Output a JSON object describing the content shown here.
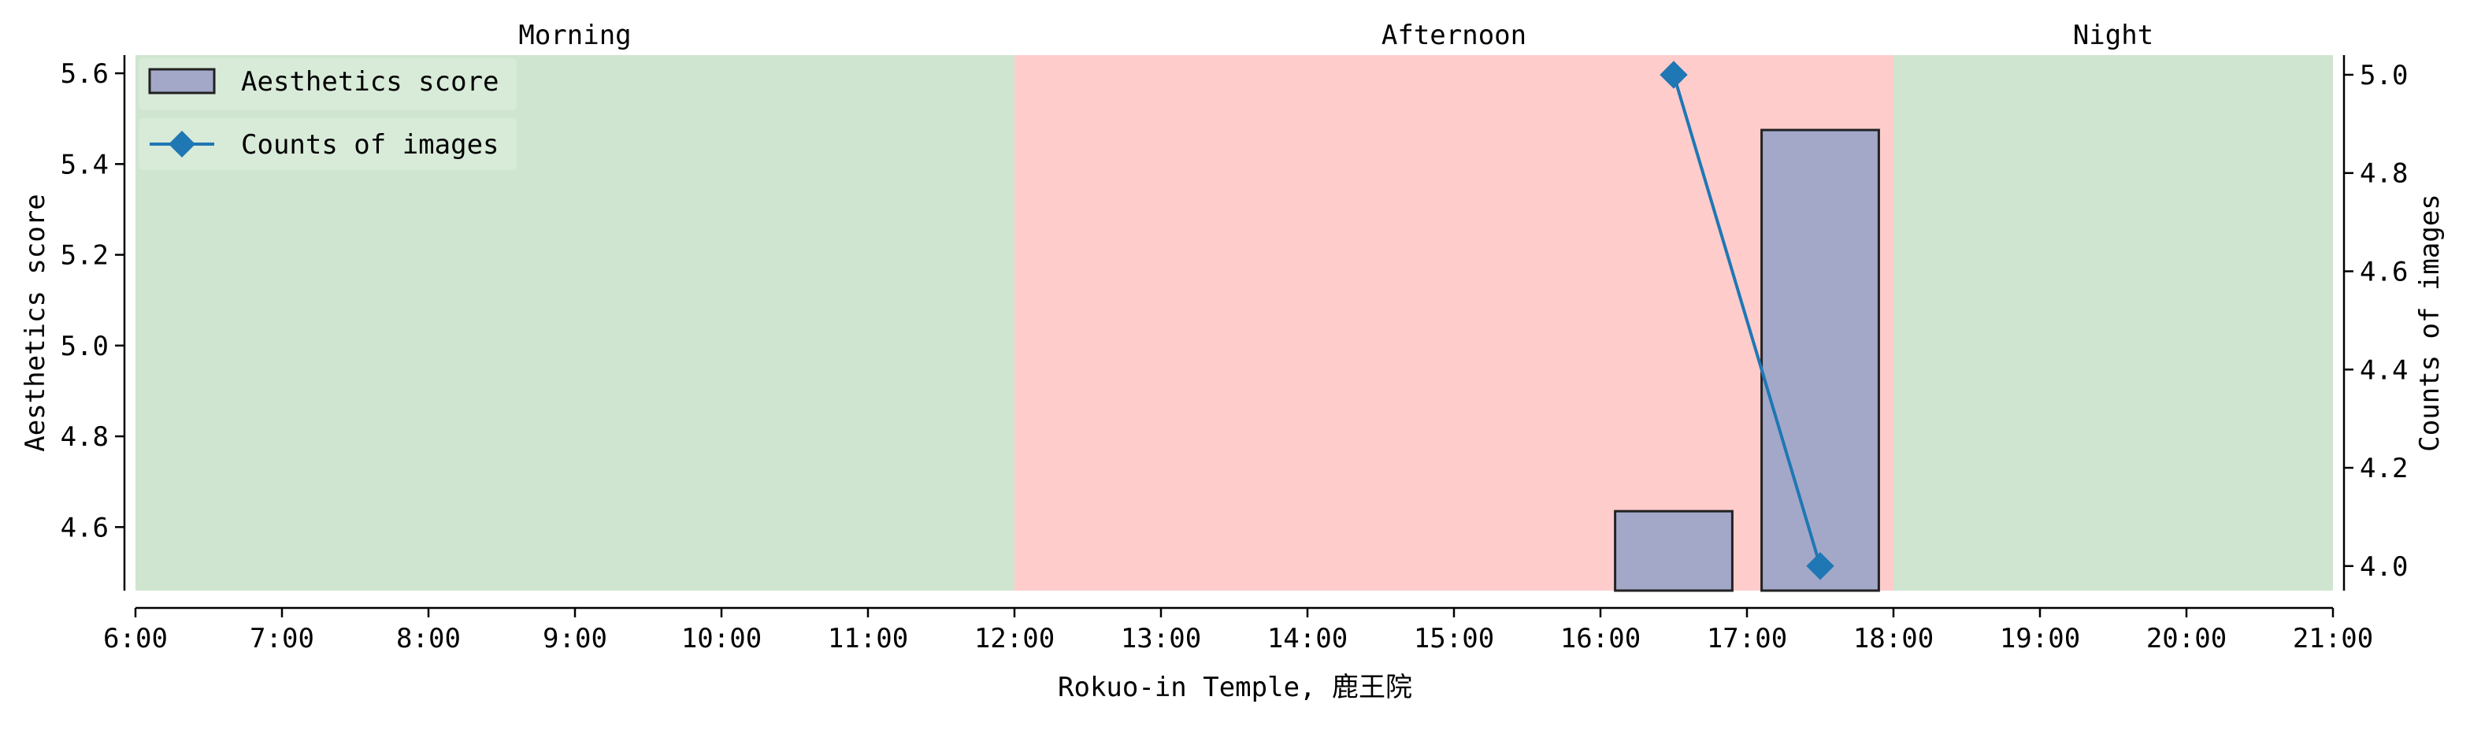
{
  "chart_data": {
    "type": "bar",
    "xlabel": "Rokuo-in Temple, 鹿王院",
    "ylabel_left": "Aesthetics score",
    "ylabel_right": "Counts of images",
    "x_ticks": [
      "6:00",
      "7:00",
      "8:00",
      "9:00",
      "10:00",
      "11:00",
      "12:00",
      "13:00",
      "14:00",
      "15:00",
      "16:00",
      "17:00",
      "18:00",
      "19:00",
      "20:00",
      "21:00"
    ],
    "xlim": [
      6,
      21
    ],
    "ylim_left": [
      4.46,
      5.64
    ],
    "ylim_right": [
      3.95,
      5.04
    ],
    "y_ticks_left": [
      "4.6",
      "4.8",
      "5.0",
      "5.2",
      "5.4",
      "5.6"
    ],
    "y_ticks_right": [
      "4.0",
      "4.2",
      "4.4",
      "4.6",
      "4.8",
      "5.0"
    ],
    "periods": [
      {
        "name": "Morning",
        "start": 6,
        "end": 12,
        "color": "#cfe5cf"
      },
      {
        "name": "Afternoon",
        "start": 12,
        "end": 18,
        "color": "#ffcccc"
      },
      {
        "name": "Night",
        "start": 18,
        "end": 21,
        "color": "#cfe5cf"
      }
    ],
    "series": [
      {
        "name": "Aesthetics score",
        "kind": "bar",
        "axis": "left",
        "color": "#a3a8c9",
        "edge_color": "#222222",
        "points": [
          {
            "x": 16.5,
            "y": 4.635
          },
          {
            "x": 17.5,
            "y": 5.475
          }
        ]
      },
      {
        "name": "Counts of images",
        "kind": "line",
        "axis": "right",
        "color": "#1f77b4",
        "marker": "diamond",
        "points": [
          {
            "x": 16.5,
            "y": 5.0
          },
          {
            "x": 17.5,
            "y": 4.0
          }
        ]
      }
    ],
    "legend_position": "upper-left",
    "grid": false
  }
}
